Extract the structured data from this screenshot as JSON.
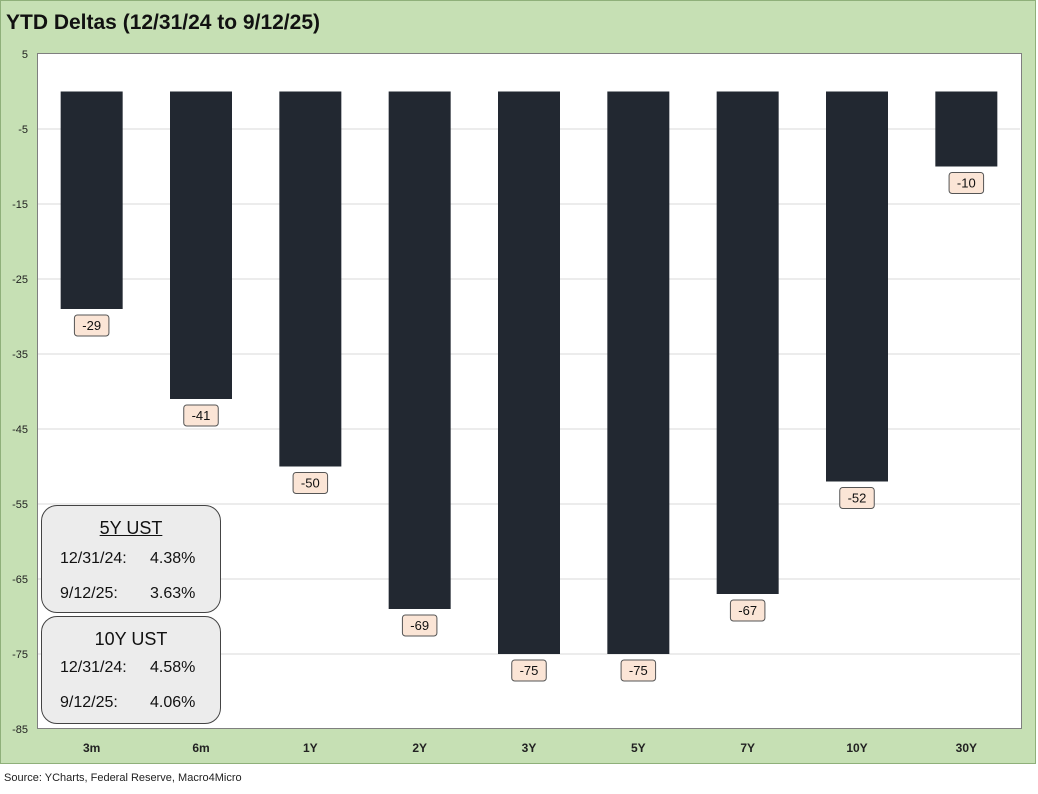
{
  "title": "YTD Deltas (12/31/24 to 9/12/25)",
  "source": "Source: YCharts, Federal Reserve, Macro4Micro",
  "chart_data": {
    "type": "bar",
    "title": "YTD Deltas (12/31/24 to 9/12/25)",
    "categories": [
      "3m",
      "6m",
      "1Y",
      "2Y",
      "3Y",
      "5Y",
      "7Y",
      "10Y",
      "30Y"
    ],
    "values": [
      -29,
      -41,
      -50,
      -69,
      -75,
      -75,
      -67,
      -52,
      -10
    ],
    "data_labels": [
      "-29",
      "-41",
      "-50",
      "-69",
      "-75",
      "-75",
      "-67",
      "-52",
      "-10"
    ],
    "ylim": [
      -85,
      5
    ],
    "yticks": [
      5,
      -5,
      -15,
      -25,
      -35,
      -45,
      -55,
      -65,
      -75,
      -85
    ],
    "ytick_labels": [
      "5",
      "-5",
      "-15",
      "-25",
      "-35",
      "-45",
      "-55",
      "-65",
      "-75",
      "-85"
    ],
    "grid": true,
    "xlabel": "",
    "ylabel": "",
    "colors": {
      "bar": "#222831",
      "label_bg": "#fbe5d6",
      "frame_bg": "#c6e0b4",
      "grid": "#d9d9d9"
    }
  },
  "boxes": [
    {
      "title": "5Y UST",
      "rows": [
        {
          "date": "12/31/24:",
          "value": "4.38%"
        },
        {
          "date": "9/12/25:",
          "value": "3.63%"
        }
      ]
    },
    {
      "title": "10Y UST",
      "rows": [
        {
          "date": "12/31/24:",
          "value": "4.58%"
        },
        {
          "date": "9/12/25:",
          "value": "4.06%"
        }
      ]
    }
  ]
}
